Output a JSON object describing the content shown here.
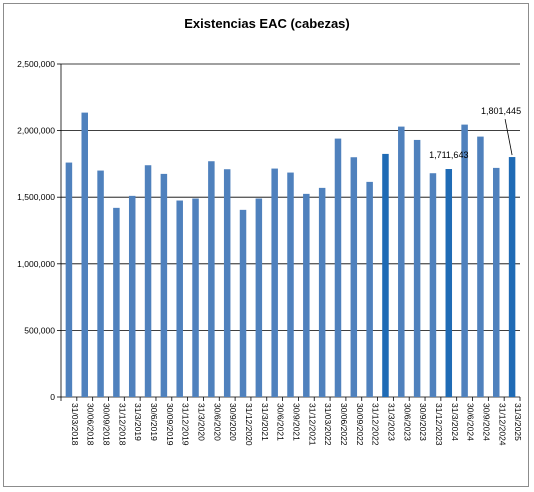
{
  "chart_data": {
    "type": "bar",
    "title": "Existencias EAC (cabezas)",
    "xlabel": "",
    "ylabel": "",
    "ylim": [
      0,
      2500000
    ],
    "yticks": [
      0,
      500000,
      1000000,
      1500000,
      2000000,
      2500000
    ],
    "ytick_labels": [
      "0",
      "500,000",
      "1,000,000",
      "1,500,000",
      "2,000,000",
      "2,500,000"
    ],
    "grid": true,
    "legend": "none",
    "colors": {
      "default": "#4f81bd",
      "highlight": "#1f6bb5"
    },
    "categories": [
      "31/03/2018",
      "30/06/2018",
      "30/09/2018",
      "31/12/2018",
      "31/3/2019",
      "30/6/2019",
      "30/09/2019",
      "31/12/2019",
      "31/3/2020",
      "30/6/2020",
      "30/9/2020",
      "31/12/2020",
      "31/3/2021",
      "30/6/2021",
      "30/9/2021",
      "31/12/2021",
      "31/03/2022",
      "30/06/2022",
      "30/09/2022",
      "31/12/2022",
      "31/3/2023",
      "30/6/2023",
      "30/9/2023",
      "31/12/2023",
      "31/3/2024",
      "30/6/2024",
      "30/9/2024",
      "31/12/2024",
      "31/3/2025"
    ],
    "values": [
      1760000,
      2135000,
      1700000,
      1420000,
      1510000,
      1740000,
      1675000,
      1475000,
      1490000,
      1770000,
      1710000,
      1405000,
      1490000,
      1715000,
      1685000,
      1525000,
      1570000,
      1940000,
      1800000,
      1615000,
      1825000,
      2030000,
      1930000,
      1680000,
      1711643,
      2045000,
      1955000,
      1720000,
      1801445
    ],
    "highlight_indices": [
      20,
      24,
      28
    ],
    "annotations": [
      {
        "index": 24,
        "text": "1,711,643"
      },
      {
        "index": 28,
        "text": "1,801,445"
      }
    ]
  }
}
